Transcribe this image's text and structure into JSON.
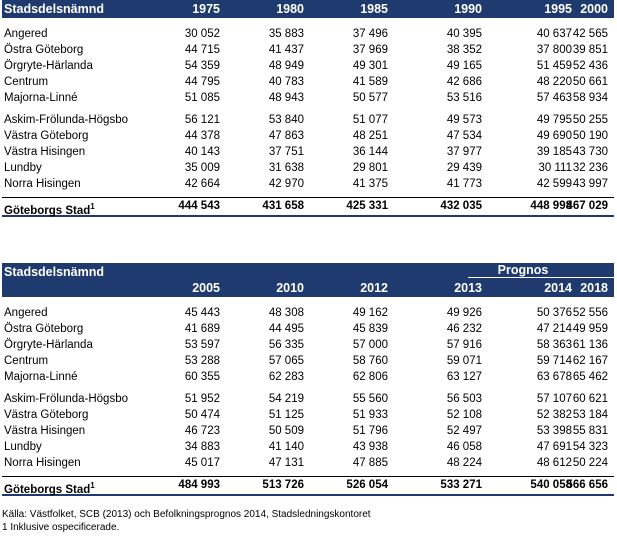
{
  "table1": {
    "header": {
      "title": "Stadsdelsnämnd",
      "years": [
        "1975",
        "1980",
        "1985",
        "1990",
        "1995",
        "2000"
      ]
    },
    "group1": [
      {
        "name": "Angered",
        "values": [
          "30 052",
          "35 883",
          "37 496",
          "40 395",
          "40 637",
          "42 565"
        ]
      },
      {
        "name": "Östra Göteborg",
        "values": [
          "44 715",
          "41 437",
          "37 969",
          "38 352",
          "37 800",
          "39 851"
        ]
      },
      {
        "name": "Örgryte-Härlanda",
        "values": [
          "54 359",
          "48 949",
          "49 301",
          "49 165",
          "51 459",
          "52 436"
        ]
      },
      {
        "name": "Centrum",
        "values": [
          "44 795",
          "40 783",
          "41 589",
          "42 686",
          "48 220",
          "50 661"
        ]
      },
      {
        "name": "Majorna-Linné",
        "values": [
          "51 085",
          "48 943",
          "50 577",
          "53 516",
          "57 463",
          "58 934"
        ]
      }
    ],
    "group2": [
      {
        "name": "Askim-Frölunda-Högsbo",
        "values": [
          "56 121",
          "53 840",
          "51 077",
          "49 573",
          "49 795",
          "50 255"
        ]
      },
      {
        "name": "Västra Göteborg",
        "values": [
          "44 378",
          "47 863",
          "48 251",
          "47 534",
          "49 690",
          "50 190"
        ]
      },
      {
        "name": "Västra Hisingen",
        "values": [
          "40 143",
          "37 751",
          "36 144",
          "37 977",
          "39 185",
          "43 730"
        ]
      },
      {
        "name": "Lundby",
        "values": [
          "35 009",
          "31 638",
          "29 801",
          "29 439",
          "30 111",
          "32 236"
        ]
      },
      {
        "name": "Norra Hisingen",
        "values": [
          "42 664",
          "42 970",
          "41 375",
          "41 773",
          "42 599",
          "43 997"
        ]
      }
    ],
    "total": {
      "name": "Göteborgs Stad",
      "sup": "1",
      "values": [
        "444 543",
        "431 658",
        "425 331",
        "432 035",
        "448 998",
        "467 029"
      ]
    }
  },
  "table2": {
    "header": {
      "title": "Stadsdelsnämnd",
      "prognos": "Prognos",
      "years": [
        "2005",
        "2010",
        "2012",
        "2013",
        "2014",
        "2018"
      ]
    },
    "group1": [
      {
        "name": "Angered",
        "values": [
          "45 443",
          "48 308",
          "49 162",
          "49 926",
          "50 376",
          "52 556"
        ]
      },
      {
        "name": "Östra Göteborg",
        "values": [
          "41 689",
          "44 495",
          "45 839",
          "46 232",
          "47 214",
          "49 959"
        ]
      },
      {
        "name": "Örgryte-Härlanda",
        "values": [
          "53 597",
          "56 335",
          "57 000",
          "57 916",
          "58 363",
          "61 136"
        ]
      },
      {
        "name": "Centrum",
        "values": [
          "53 288",
          "57 065",
          "58 760",
          "59 071",
          "59 714",
          "62 167"
        ]
      },
      {
        "name": "Majorna-Linné",
        "values": [
          "60 355",
          "62 283",
          "62 806",
          "63 127",
          "63 678",
          "65 462"
        ]
      }
    ],
    "group2": [
      {
        "name": "Askim-Frölunda-Högsbo",
        "values": [
          "51 952",
          "54 219",
          "55 560",
          "56 503",
          "57 107",
          "60 621"
        ]
      },
      {
        "name": "Västra Göteborg",
        "values": [
          "50 474",
          "51 125",
          "51 933",
          "52 108",
          "52 382",
          "53 184"
        ]
      },
      {
        "name": "Västra Hisingen",
        "values": [
          "46 723",
          "50 509",
          "51 796",
          "52 497",
          "53 398",
          "55 831"
        ]
      },
      {
        "name": "Lundby",
        "values": [
          "34 883",
          "41 140",
          "43 938",
          "46 058",
          "47 691",
          "54 323"
        ]
      },
      {
        "name": "Norra Hisingen",
        "values": [
          "45 017",
          "47 131",
          "47 885",
          "48 224",
          "48 612",
          "50 224"
        ]
      }
    ],
    "total": {
      "name": "Göteborgs Stad",
      "sup": "1",
      "values": [
        "484 993",
        "513 726",
        "526 054",
        "533 271",
        "540 058",
        "566 656"
      ]
    }
  },
  "footer": {
    "source": "Källa:  Västfolket, SCB (2013) och Befolkningsprognos 2014, Stadsledningskontoret",
    "note": "1  Inklusive ospecificerade."
  }
}
